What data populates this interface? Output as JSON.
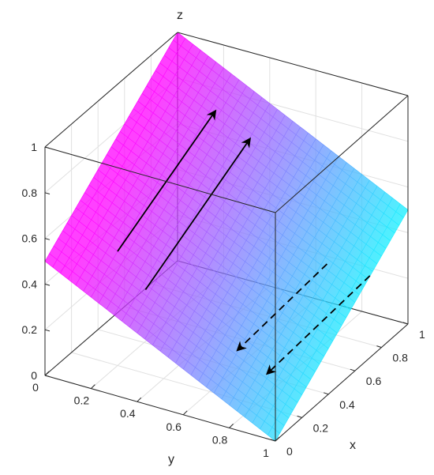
{
  "chart_data": {
    "type": "surface",
    "title": "",
    "xlabel": "x",
    "ylabel": "y",
    "zlabel": "z",
    "xlim": [
      0,
      1
    ],
    "ylim": [
      0,
      1
    ],
    "zlim": [
      0,
      1
    ],
    "grid": true,
    "x_ticks": [
      "0",
      "0.2",
      "0.4",
      "0.6",
      "0.8",
      "1"
    ],
    "y_ticks": [
      "0",
      "0.2",
      "0.4",
      "0.6",
      "0.8",
      "1"
    ],
    "z_ticks": [
      "0",
      "0.2",
      "0.4",
      "0.6",
      "0.8",
      "1"
    ],
    "surface": {
      "description_formula": "z = 0.5 + 0.5*x - 0.5*y",
      "corners": [
        {
          "x": 0,
          "y": 0,
          "z": 0.5
        },
        {
          "x": 1,
          "y": 0,
          "z": 1.0
        },
        {
          "x": 0,
          "y": 1,
          "z": 0.0
        },
        {
          "x": 1,
          "y": 1,
          "z": 0.5
        }
      ],
      "colormap": [
        "#ff00ff",
        "#00ffff"
      ]
    },
    "arrows": [
      {
        "style": "solid",
        "from": {
          "x": 0.2,
          "y": 0.2,
          "z": 0.5
        },
        "to": {
          "x": 0.85,
          "y": 0.25,
          "z": 0.8
        }
      },
      {
        "style": "solid",
        "from": {
          "x": 0.15,
          "y": 0.35,
          "z": 0.4
        },
        "to": {
          "x": 0.85,
          "y": 0.4,
          "z": 0.72
        }
      },
      {
        "style": "dashed",
        "from": {
          "x": 0.65,
          "y": 0.85,
          "z": 0.4
        },
        "to": {
          "x": 0.15,
          "y": 0.75,
          "z": 0.25
        }
      },
      {
        "style": "dashed",
        "from": {
          "x": 0.8,
          "y": 0.95,
          "z": 0.3
        },
        "to": {
          "x": 0.2,
          "y": 0.85,
          "z": 0.15
        }
      }
    ]
  }
}
